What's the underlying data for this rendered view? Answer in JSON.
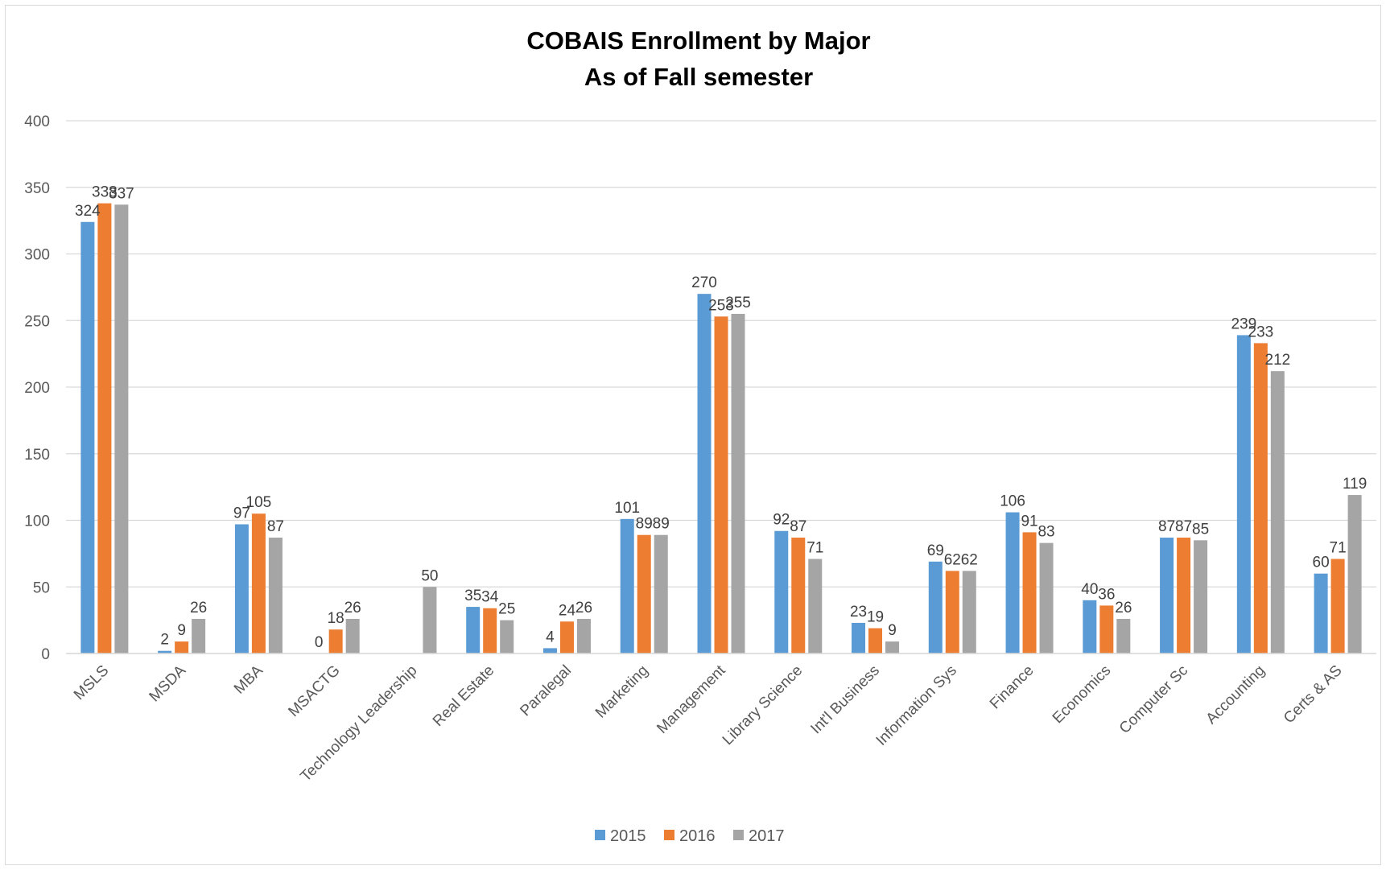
{
  "chart_data": {
    "type": "bar",
    "title_lines": [
      "COBAIS Enrollment by Major",
      "As of Fall semester"
    ],
    "xlabel": "",
    "ylabel": "",
    "ylim": [
      0,
      400
    ],
    "yticks": [
      0,
      50,
      100,
      150,
      200,
      250,
      300,
      350,
      400
    ],
    "grid": true,
    "legend_position": "bottom",
    "categories": [
      "MSLS",
      "MSDA",
      "MBA",
      "MSACTG",
      "Technology Leadership",
      "Real Estate",
      "Paralegal",
      "Marketing",
      "Management",
      "Library Science",
      "Int'l Business",
      "Information Sys",
      "Finance",
      "Economics",
      "Computer Sc",
      "Accounting",
      "Certs & AS"
    ],
    "series": [
      {
        "name": "2015",
        "color": "#5B9BD5",
        "values": [
          324,
          2,
          97,
          0,
          null,
          35,
          4,
          101,
          270,
          92,
          23,
          69,
          106,
          40,
          87,
          239,
          60
        ]
      },
      {
        "name": "2016",
        "color": "#ED7D31",
        "values": [
          338,
          9,
          105,
          18,
          null,
          34,
          24,
          89,
          253,
          87,
          19,
          62,
          91,
          36,
          87,
          233,
          71
        ]
      },
      {
        "name": "2017",
        "color": "#A5A5A5",
        "values": [
          337,
          26,
          87,
          26,
          50,
          25,
          26,
          89,
          255,
          71,
          9,
          62,
          83,
          26,
          85,
          212,
          119
        ]
      }
    ]
  }
}
